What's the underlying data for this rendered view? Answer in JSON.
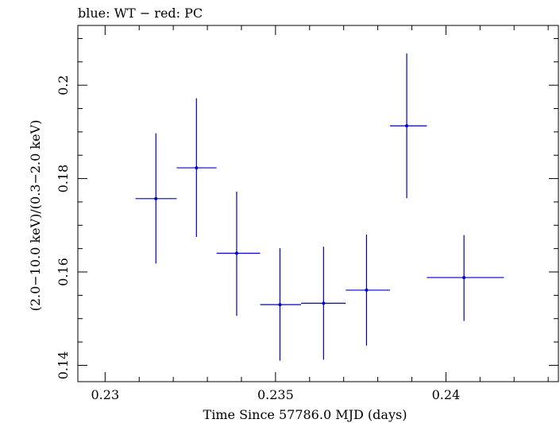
{
  "chart_data": {
    "type": "scatter",
    "title": "blue: WT − red: PC",
    "xlabel": "Time Since 57786.0 MJD (days)",
    "ylabel": "(2.0−10.0 keV)/(0.3−2.0 keV)",
    "xlim": [
      0.2292,
      0.2433
    ],
    "ylim": [
      0.1365,
      0.2128
    ],
    "xticks": [
      {
        "value": 0.23,
        "label": "0.23"
      },
      {
        "value": 0.235,
        "label": "0.235"
      },
      {
        "value": 0.24,
        "label": "0.24"
      }
    ],
    "yticks": [
      {
        "value": 0.14,
        "label": "0.14"
      },
      {
        "value": 0.16,
        "label": "0.16"
      },
      {
        "value": 0.18,
        "label": "0.18"
      },
      {
        "value": 0.2,
        "label": "0.2"
      }
    ],
    "series": [
      {
        "name": "WT",
        "color": "#0000cc",
        "points": [
          {
            "x": 0.23149,
            "y": 0.1757,
            "xerr_lo": 0.23089,
            "xerr_hi": 0.2321,
            "yerr_lo": 0.1618,
            "yerr_hi": 0.1897
          },
          {
            "x": 0.23268,
            "y": 0.1823,
            "xerr_lo": 0.2321,
            "xerr_hi": 0.23327,
            "yerr_lo": 0.1675,
            "yerr_hi": 0.1972
          },
          {
            "x": 0.23386,
            "y": 0.164,
            "xerr_lo": 0.23327,
            "xerr_hi": 0.23455,
            "yerr_lo": 0.1506,
            "yerr_hi": 0.1772
          },
          {
            "x": 0.23513,
            "y": 0.153,
            "xerr_lo": 0.23455,
            "xerr_hi": 0.23575,
            "yerr_lo": 0.141,
            "yerr_hi": 0.1651
          },
          {
            "x": 0.23641,
            "y": 0.1533,
            "xerr_lo": 0.23575,
            "xerr_hi": 0.23706,
            "yerr_lo": 0.1412,
            "yerr_hi": 0.1654
          },
          {
            "x": 0.23767,
            "y": 0.1561,
            "xerr_lo": 0.23706,
            "xerr_hi": 0.23836,
            "yerr_lo": 0.1442,
            "yerr_hi": 0.168
          },
          {
            "x": 0.23885,
            "y": 0.1913,
            "xerr_lo": 0.23836,
            "xerr_hi": 0.23944,
            "yerr_lo": 0.1758,
            "yerr_hi": 0.2068
          },
          {
            "x": 0.24053,
            "y": 0.1588,
            "xerr_lo": 0.23944,
            "xerr_hi": 0.2417,
            "yerr_lo": 0.1495,
            "yerr_hi": 0.1679
          }
        ]
      }
    ]
  }
}
